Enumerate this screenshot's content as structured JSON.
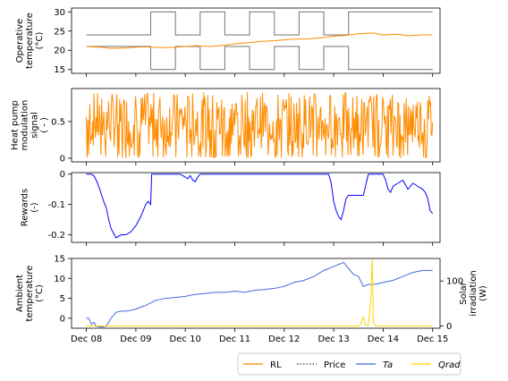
{
  "chart_data": [
    {
      "type": "line",
      "ylabel_lines": [
        "Operative",
        "temperature",
        "(°C)"
      ],
      "ylim": [
        14,
        31
      ],
      "yticks": [
        15,
        20,
        25,
        30
      ],
      "series": [
        {
          "name": "RL",
          "color": "#ff8c00",
          "x": [
            0.0,
            0.3,
            0.5,
            0.8,
            1.0,
            1.2,
            1.5,
            1.8,
            2.0,
            2.2,
            2.5,
            2.8,
            3.0,
            3.3,
            3.5,
            3.8,
            4.0,
            4.2,
            4.5,
            4.8,
            5.0,
            5.2,
            5.5,
            5.8,
            6.0,
            6.3,
            6.5,
            6.8,
            7.0
          ],
          "y": [
            21.0,
            20.8,
            20.5,
            20.6,
            20.8,
            20.9,
            20.7,
            20.8,
            21.0,
            21.2,
            21.0,
            21.3,
            21.7,
            22.0,
            22.3,
            22.5,
            22.7,
            22.9,
            23.0,
            23.3,
            23.7,
            23.8,
            24.3,
            24.5,
            24.0,
            24.2,
            23.8,
            24.0,
            24.0
          ]
        }
      ],
      "comfort_bounds": {
        "color": "#808080",
        "upper": {
          "x": [
            0,
            1.3,
            1.3,
            1.8,
            1.8,
            2.3,
            2.3,
            2.8,
            2.8,
            3.3,
            3.3,
            3.8,
            3.8,
            4.3,
            4.3,
            4.8,
            4.8,
            5.3,
            5.3,
            7.0
          ],
          "y": [
            24,
            24,
            30,
            30,
            24,
            24,
            30,
            30,
            24,
            24,
            30,
            30,
            24,
            24,
            30,
            30,
            24,
            24,
            30,
            30
          ]
        },
        "lower": {
          "x": [
            0,
            1.3,
            1.3,
            1.8,
            1.8,
            2.3,
            2.3,
            2.8,
            2.8,
            3.3,
            3.3,
            3.8,
            3.8,
            4.3,
            4.3,
            4.8,
            4.8,
            5.3,
            5.3,
            7.0
          ],
          "y": [
            21,
            21,
            15,
            15,
            21,
            21,
            15,
            15,
            21,
            21,
            15,
            15,
            21,
            21,
            15,
            15,
            21,
            21,
            15,
            15
          ]
        }
      }
    },
    {
      "type": "line",
      "ylabel_lines": [
        "Heat pump",
        "modulation",
        "signal",
        "( - )"
      ],
      "ylim": [
        -0.05,
        0.95
      ],
      "yticks": [
        0.0,
        0.5
      ],
      "series": [
        {
          "name": "RL",
          "color": "#ff8c00",
          "x_range": [
            0,
            7
          ],
          "n_points": 500,
          "min": 0.0,
          "max": 0.9
        }
      ]
    },
    {
      "type": "line",
      "ylabel_lines": [
        "Rewards",
        "(-)"
      ],
      "ylim": [
        -0.225,
        0.005
      ],
      "yticks": [
        0.0,
        -0.1,
        -0.2
      ],
      "series": [
        {
          "name": "",
          "color": "#0000ff",
          "x": [
            0.0,
            0.1,
            0.15,
            0.2,
            0.25,
            0.35,
            0.4,
            0.45,
            0.5,
            0.6,
            0.7,
            0.8,
            0.9,
            1.0,
            1.1,
            1.2,
            1.25,
            1.3,
            1.32,
            1.4,
            1.9,
            2.0,
            2.05,
            2.1,
            2.15,
            2.2,
            2.25,
            2.3,
            2.35,
            3.0,
            4.9,
            4.95,
            5.0,
            5.05,
            5.1,
            5.15,
            5.2,
            5.25,
            5.3,
            5.6,
            5.7,
            6.0,
            6.05,
            6.1,
            6.15,
            6.2,
            6.3,
            6.4,
            6.5,
            6.6,
            6.7,
            6.8,
            6.85,
            6.9,
            6.95,
            7.0
          ],
          "y": [
            0.0,
            0.0,
            -0.005,
            -0.02,
            -0.04,
            -0.09,
            -0.11,
            -0.15,
            -0.18,
            -0.21,
            -0.2,
            -0.2,
            -0.19,
            -0.17,
            -0.14,
            -0.1,
            -0.09,
            -0.1,
            0.0,
            0.0,
            0.0,
            -0.01,
            -0.015,
            -0.005,
            -0.02,
            -0.025,
            -0.01,
            0.0,
            0.0,
            0.0,
            0.0,
            -0.03,
            -0.09,
            -0.12,
            -0.14,
            -0.15,
            -0.12,
            -0.08,
            -0.07,
            -0.07,
            0.0,
            0.0,
            -0.02,
            -0.05,
            -0.06,
            -0.04,
            -0.03,
            -0.02,
            -0.05,
            -0.03,
            -0.04,
            -0.05,
            -0.06,
            -0.08,
            -0.12,
            -0.13
          ]
        }
      ]
    },
    {
      "type": "line",
      "ylabel_lines": [
        "Ambient",
        "temperature",
        "(°C)"
      ],
      "ylim": [
        -2.5,
        15
      ],
      "yticks": [
        0,
        5,
        10,
        15
      ],
      "y2label_lines": [
        "Solar",
        "irradiation",
        "(W)"
      ],
      "y2lim": [
        -5,
        150
      ],
      "y2ticks": [
        0,
        100
      ],
      "series": [
        {
          "name": "Ta",
          "color": "#4169e1",
          "x": [
            0.0,
            0.05,
            0.1,
            0.15,
            0.2,
            0.3,
            0.4,
            0.5,
            0.6,
            0.7,
            0.8,
            0.9,
            1.0,
            1.1,
            1.2,
            1.4,
            1.6,
            1.8,
            2.0,
            2.2,
            2.4,
            2.6,
            2.8,
            3.0,
            3.2,
            3.4,
            3.6,
            3.8,
            4.0,
            4.2,
            4.4,
            4.6,
            4.8,
            5.0,
            5.2,
            5.3,
            5.4,
            5.5,
            5.6,
            5.7,
            5.8,
            5.9,
            6.0,
            6.2,
            6.4,
            6.6,
            6.8,
            7.0
          ],
          "y": [
            0.0,
            0.0,
            -1.5,
            -1.0,
            -2.0,
            -2.2,
            -2.0,
            0.0,
            1.5,
            1.8,
            1.8,
            2.0,
            2.3,
            2.8,
            3.2,
            4.5,
            5.0,
            5.2,
            5.5,
            6.0,
            6.2,
            6.5,
            6.5,
            6.8,
            6.5,
            7.0,
            7.2,
            7.5,
            8.0,
            9.0,
            9.5,
            10.5,
            12.0,
            13.0,
            14.0,
            12.5,
            11.0,
            10.5,
            8.0,
            8.5,
            8.5,
            8.7,
            9.0,
            9.5,
            10.5,
            11.5,
            12.0,
            12.0
          ]
        },
        {
          "name": "Qrad",
          "color": "#ffd700",
          "axis": "right",
          "x": [
            0.0,
            5.5,
            5.55,
            5.6,
            5.65,
            5.7,
            5.75,
            5.78,
            5.8,
            5.85,
            5.9,
            7.0
          ],
          "y": [
            0,
            0,
            5,
            20,
            2,
            0,
            60,
            150,
            10,
            0,
            0,
            0
          ]
        }
      ]
    }
  ],
  "xaxis": {
    "tick_labels": [
      "Dec 08",
      "Dec 09",
      "Dec 10",
      "Dec 11",
      "Dec 12",
      "Dec 13",
      "Dec 14",
      "Dec 15"
    ],
    "xlim": [
      -0.3,
      7.15
    ]
  },
  "legend": {
    "placement": "bottom-right",
    "entries": [
      {
        "label": "RL",
        "color": "#ff8c00",
        "style": "solid"
      },
      {
        "label": "Price",
        "color": "#404040",
        "style": "dotted"
      },
      {
        "label": "Ta",
        "color": "#4169e1",
        "style": "solid"
      },
      {
        "label": "Qrad",
        "color": "#ffd700",
        "style": "solid"
      }
    ]
  }
}
